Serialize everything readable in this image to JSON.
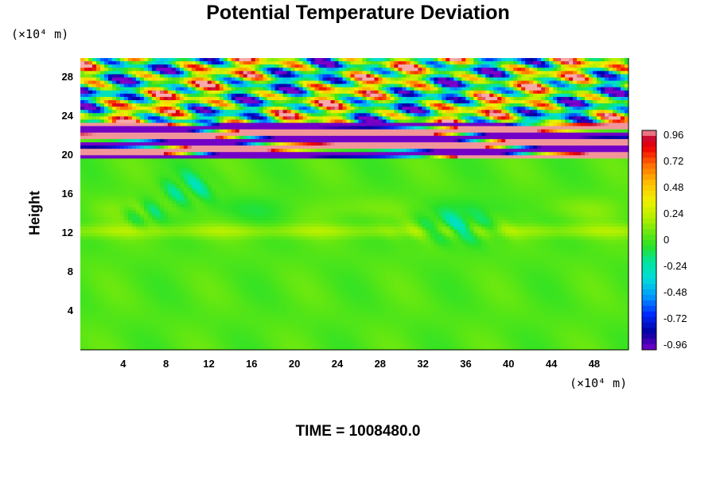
{
  "chart_data": {
    "type": "heatmap",
    "title": "Potential Temperature Deviation",
    "ylabel": "Height",
    "x_unit": "(×10⁴ m)",
    "y_unit": "(×10⁴ m)",
    "xlim": [
      0,
      51.2
    ],
    "ylim": [
      0,
      30
    ],
    "x_ticks": [
      "4",
      "8",
      "12",
      "16",
      "20",
      "24",
      "28",
      "32",
      "36",
      "40",
      "44",
      "48"
    ],
    "y_ticks": [
      "4",
      "8",
      "12",
      "16",
      "20",
      "24",
      "28"
    ],
    "colorbar": {
      "range": [
        -1,
        1
      ],
      "tick_labels": [
        "0.96",
        "0.72",
        "0.48",
        "0.24",
        "0",
        "-0.24",
        "-0.48",
        "-0.72",
        "-0.96"
      ],
      "tick_values": [
        0.96,
        0.72,
        0.48,
        0.24,
        0,
        -0.24,
        -0.48,
        -0.72,
        -0.96
      ],
      "low_color": "#7a00c8",
      "high_color": "#f8aaaa"
    },
    "field_regions": [
      {
        "y_range": [
          0,
          19.8
        ],
        "value_range": [
          -0.4,
          0.3
        ],
        "description": "mostly near zero"
      },
      {
        "y_range": [
          19.8,
          23.5
        ],
        "value_range": [
          -1,
          1
        ],
        "description": "strong alternating bands"
      },
      {
        "y_range": [
          23.5,
          30
        ],
        "value_range": [
          -1,
          1
        ],
        "description": "wavy oscillations"
      }
    ],
    "time_label": "TIME = 1008480.0"
  }
}
